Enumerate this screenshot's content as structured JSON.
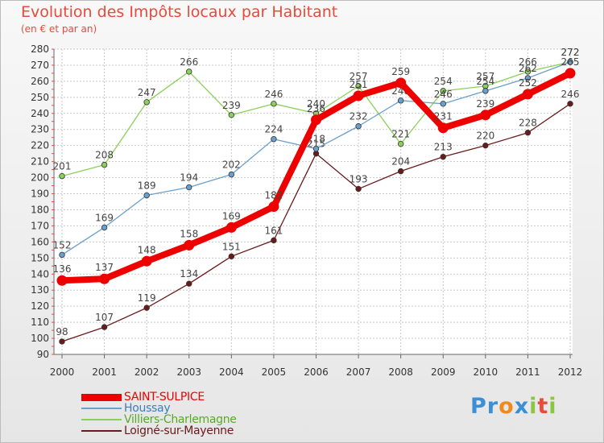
{
  "chart_data": {
    "type": "line",
    "title": "Evolution des Impôts locaux par Habitant",
    "subtitle": "(en € et par an)",
    "xlabel": "",
    "ylabel": "",
    "ylim": [
      90,
      280
    ],
    "yticks": [
      90,
      100,
      110,
      120,
      130,
      140,
      150,
      160,
      170,
      180,
      190,
      200,
      210,
      220,
      230,
      240,
      250,
      260,
      270,
      280
    ],
    "categories": [
      "2000",
      "2001",
      "2002",
      "2003",
      "2004",
      "2005",
      "2006",
      "2007",
      "2008",
      "2009",
      "2010",
      "2011",
      "2012"
    ],
    "series": [
      {
        "name": "Loigné-sur-Mayenne",
        "color": "#6b1a1a",
        "values": [
          98,
          107,
          119,
          134,
          151,
          161,
          215,
          193,
          204,
          213,
          220,
          228,
          246
        ]
      },
      {
        "name": "Villiers-Charlemagne",
        "color": "#8cd05a",
        "values": [
          201,
          208,
          247,
          266,
          239,
          246,
          240,
          257,
          221,
          254,
          257,
          266,
          272
        ]
      },
      {
        "name": "Houssay",
        "color": "#6aa0cc",
        "values": [
          152,
          169,
          189,
          194,
          202,
          224,
          218,
          232,
          248,
          246,
          254,
          262,
          272
        ]
      },
      {
        "name": "SAINT-SULPICE",
        "color": "#ee0000",
        "values": [
          136,
          137,
          148,
          158,
          169,
          182,
          236,
          251,
          259,
          231,
          239,
          252,
          265
        ]
      }
    ],
    "legend": [
      "SAINT-SULPICE",
      "Houssay",
      "Villiers-Charlemagne",
      "Loigné-sur-Mayenne"
    ],
    "legend_position": "bottom-left"
  },
  "branding": {
    "logo_text": "Proxiti",
    "letters": [
      "P",
      "r",
      "o",
      "x",
      "i",
      "t",
      "i"
    ],
    "letter_colors": [
      "#3a8fd6",
      "#3a8fd6",
      "#f08a1c",
      "#3a8fd6",
      "#8cc63e",
      "#e84a3c",
      "#8cc63e"
    ]
  }
}
